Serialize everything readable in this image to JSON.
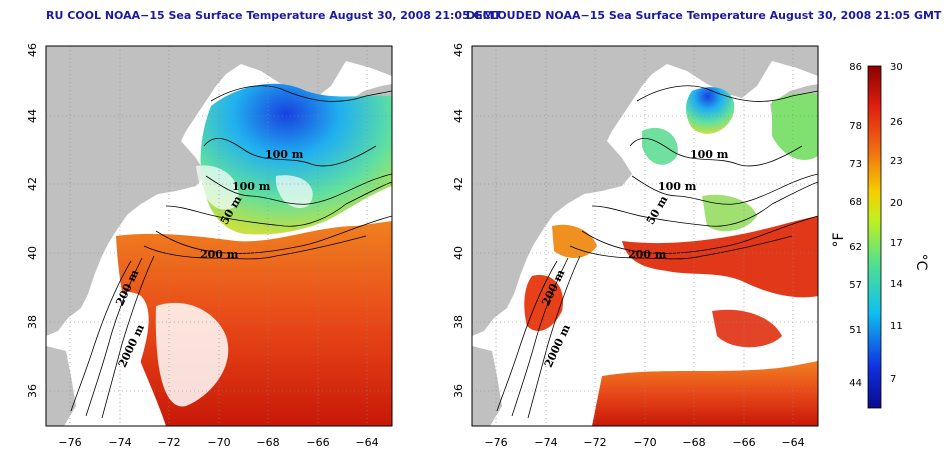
{
  "panels": [
    {
      "id": "left",
      "title": "RU COOL NOAA−15 Sea Surface Temperature August 30, 2008 21:05 GMT"
    },
    {
      "id": "right",
      "title": "DECLOUDED NOAA−15 Sea Surface Temperature August 30, 2008 21:05 GMT"
    }
  ],
  "axes": {
    "lon_ticks": [
      "−76",
      "−74",
      "−72",
      "−70",
      "−68",
      "−66",
      "−64"
    ],
    "lat_ticks": [
      "36",
      "38",
      "40",
      "42",
      "44",
      "46"
    ],
    "lon_range": [
      -77,
      -63
    ],
    "lat_range": [
      35,
      46
    ],
    "grid": "dotted"
  },
  "contour_labels": [
    "100 m",
    "100 m",
    "50 m",
    "200 m",
    "2000 m",
    "200 m"
  ],
  "colorbar": {
    "fahrenheit_ticks": [
      "86",
      "78",
      "73",
      "68",
      "62",
      "57",
      "51",
      "44"
    ],
    "celsius_ticks": [
      "30",
      "26",
      "23",
      "20",
      "17",
      "14",
      "11",
      "7"
    ],
    "fahrenheit_unit": "°F",
    "celsius_unit": "°C",
    "range_celsius": [
      5,
      30
    ]
  },
  "colors": {
    "land": "#c0c0c0",
    "no_data": "#ffffff",
    "warm": "#d42a10",
    "cool": "#1a50e0",
    "title": "#1a1aa8"
  }
}
